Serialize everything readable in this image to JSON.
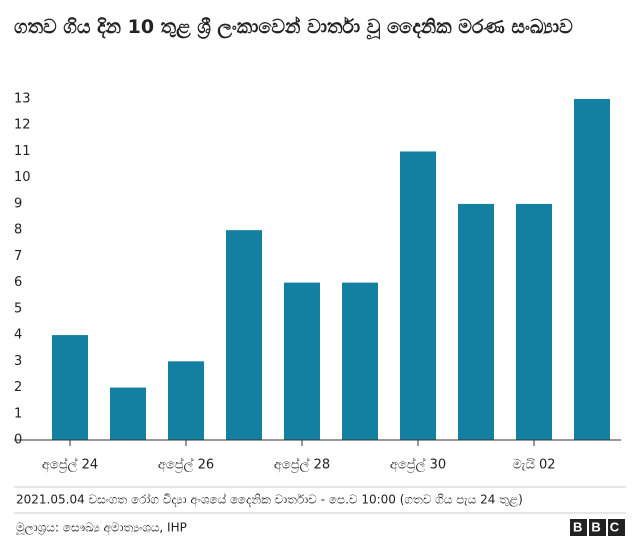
{
  "chart_data": {
    "type": "bar",
    "title": "ගතව ගිය දින 10 තුළ ශ්‍රී ලංකාවෙන් වාර්තා වූ දෛනික මරණ සංඛ්‍යාව",
    "categories": [
      "අප්‍රේල් 24",
      null,
      "අප්‍රේල් 26",
      null,
      "අප්‍රේල් 28",
      null,
      "අප්‍රේල් 30",
      null,
      "මැයි 02",
      null
    ],
    "values": [
      4,
      2,
      3,
      8,
      6,
      6,
      11,
      9,
      9,
      13
    ],
    "color": "#1380a1",
    "ylim": [
      0,
      13
    ],
    "yticks": [
      0,
      1,
      2,
      3,
      4,
      5,
      6,
      7,
      8,
      9,
      10,
      11,
      12,
      13
    ],
    "grid": false,
    "footnote": "2021.05.04 වසංගත රෝග විද්‍යා අංශයේ දෛනික වාර්තාව - පෙ.ව 10:00 (ගතව ගිය පැය 24 තුළ)",
    "source": "මූලාශ්‍රය: සෞඛ්‍ය අමාත්‍යංශය, IHP",
    "logo": "BBC"
  }
}
